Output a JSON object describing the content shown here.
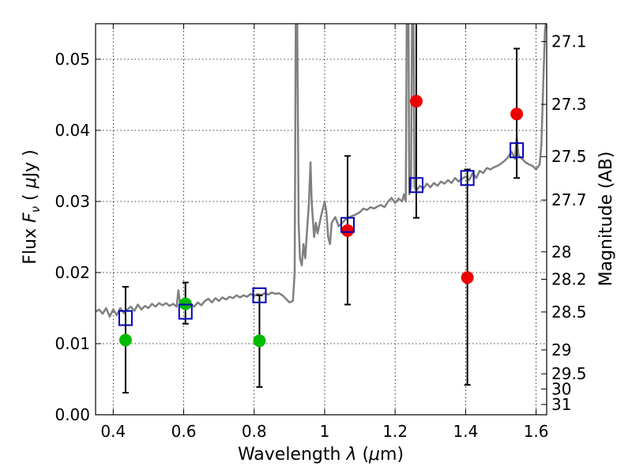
{
  "chart_data": {
    "type": "scatter",
    "title": "",
    "xlabel": {
      "prefix": "Wavelength  ",
      "symbol": "λ",
      "unit_open": " (",
      "unit_mu": "μ",
      "unit_rest": "m)"
    },
    "ylabel": {
      "prefix": "Flux  ",
      "symbol": "F",
      "subscript": "ν",
      "unit_open": "  ( ",
      "unit_mu": "μ",
      "unit_rest": "Jy )"
    },
    "y2label": "Magnitude (AB)",
    "xlim": [
      0.35,
      1.63
    ],
    "ylim": [
      0.0,
      0.055
    ],
    "grid": true,
    "grid_style": "dotted",
    "xticks": [
      {
        "value": 0.4,
        "label": "0.4"
      },
      {
        "value": 0.6,
        "label": "0.6"
      },
      {
        "value": 0.8,
        "label": "0.8"
      },
      {
        "value": 1.0,
        "label": "1"
      },
      {
        "value": 1.2,
        "label": "1.2"
      },
      {
        "value": 1.4,
        "label": "1.4"
      },
      {
        "value": 1.6,
        "label": "1.6"
      }
    ],
    "yticks": [
      {
        "value": 0.0,
        "label": "0.00"
      },
      {
        "value": 0.01,
        "label": "0.01"
      },
      {
        "value": 0.02,
        "label": "0.02"
      },
      {
        "value": 0.03,
        "label": "0.03"
      },
      {
        "value": 0.04,
        "label": "0.04"
      },
      {
        "value": 0.05,
        "label": "0.05"
      }
    ],
    "y2ticks": [
      {
        "value": 27.1,
        "label": "27.1"
      },
      {
        "value": 27.3,
        "label": "27.3"
      },
      {
        "value": 27.5,
        "label": "27.5"
      },
      {
        "value": 27.7,
        "label": "27.7"
      },
      {
        "value": 28.0,
        "label": "28"
      },
      {
        "value": 28.2,
        "label": "28.2"
      },
      {
        "value": 28.5,
        "label": "28.5"
      },
      {
        "value": 29.0,
        "label": "29"
      },
      {
        "value": 29.5,
        "label": "29.5"
      },
      {
        "value": 30.0,
        "label": "30"
      },
      {
        "value": 31.0,
        "label": "31"
      }
    ],
    "colors": {
      "spectrum": "#808080",
      "green": "#00bb00",
      "red": "#ee0000",
      "model": "#0000bb",
      "errorbar": "#000000"
    },
    "series": [
      {
        "kind": "line",
        "color": "#808080",
        "points": [
          [
            0.35,
            0.0145
          ],
          [
            0.36,
            0.0148
          ],
          [
            0.37,
            0.0142
          ],
          [
            0.38,
            0.015
          ],
          [
            0.39,
            0.0138
          ],
          [
            0.4,
            0.0148
          ],
          [
            0.41,
            0.014
          ],
          [
            0.42,
            0.015
          ],
          [
            0.43,
            0.0143
          ],
          [
            0.44,
            0.0148
          ],
          [
            0.45,
            0.0152
          ],
          [
            0.46,
            0.0146
          ],
          [
            0.47,
            0.0155
          ],
          [
            0.48,
            0.0148
          ],
          [
            0.49,
            0.0153
          ],
          [
            0.5,
            0.015
          ],
          [
            0.51,
            0.0156
          ],
          [
            0.52,
            0.0152
          ],
          [
            0.53,
            0.0157
          ],
          [
            0.54,
            0.0154
          ],
          [
            0.55,
            0.0157
          ],
          [
            0.56,
            0.0153
          ],
          [
            0.57,
            0.0156
          ],
          [
            0.58,
            0.0152
          ],
          [
            0.585,
            0.0175
          ],
          [
            0.59,
            0.0155
          ],
          [
            0.6,
            0.0154
          ],
          [
            0.61,
            0.0152
          ],
          [
            0.62,
            0.0156
          ],
          [
            0.63,
            0.0152
          ],
          [
            0.64,
            0.0158
          ],
          [
            0.65,
            0.0154
          ],
          [
            0.66,
            0.016
          ],
          [
            0.67,
            0.0163
          ],
          [
            0.68,
            0.0158
          ],
          [
            0.69,
            0.0164
          ],
          [
            0.7,
            0.016
          ],
          [
            0.71,
            0.0165
          ],
          [
            0.72,
            0.0162
          ],
          [
            0.73,
            0.0166
          ],
          [
            0.74,
            0.0164
          ],
          [
            0.75,
            0.0168
          ],
          [
            0.76,
            0.0165
          ],
          [
            0.77,
            0.0168
          ],
          [
            0.78,
            0.0166
          ],
          [
            0.79,
            0.017
          ],
          [
            0.8,
            0.0167
          ],
          [
            0.81,
            0.017
          ],
          [
            0.82,
            0.0168
          ],
          [
            0.83,
            0.0171
          ],
          [
            0.84,
            0.0169
          ],
          [
            0.85,
            0.0172
          ],
          [
            0.86,
            0.017
          ],
          [
            0.87,
            0.0171
          ],
          [
            0.88,
            0.0168
          ],
          [
            0.89,
            0.0163
          ],
          [
            0.9,
            0.0158
          ],
          [
            0.91,
            0.016
          ],
          [
            0.915,
            0.02
          ],
          [
            0.918,
            0.056
          ],
          [
            0.922,
            0.056
          ],
          [
            0.926,
            0.027
          ],
          [
            0.93,
            0.022
          ],
          [
            0.935,
            0.021
          ],
          [
            0.94,
            0.024
          ],
          [
            0.945,
            0.022
          ],
          [
            0.95,
            0.026
          ],
          [
            0.955,
            0.0295
          ],
          [
            0.96,
            0.0355
          ],
          [
            0.963,
            0.03
          ],
          [
            0.97,
            0.025
          ],
          [
            0.975,
            0.027
          ],
          [
            0.98,
            0.0255
          ],
          [
            0.99,
            0.028
          ],
          [
            1.0,
            0.03
          ],
          [
            1.005,
            0.0285
          ],
          [
            1.01,
            0.025
          ],
          [
            1.015,
            0.024
          ],
          [
            1.02,
            0.027
          ],
          [
            1.03,
            0.0278
          ],
          [
            1.04,
            0.0265
          ],
          [
            1.05,
            0.027
          ],
          [
            1.06,
            0.0275
          ],
          [
            1.07,
            0.0278
          ],
          [
            1.08,
            0.028
          ],
          [
            1.09,
            0.0282
          ],
          [
            1.1,
            0.0285
          ],
          [
            1.11,
            0.029
          ],
          [
            1.12,
            0.0288
          ],
          [
            1.13,
            0.0292
          ],
          [
            1.14,
            0.029
          ],
          [
            1.15,
            0.0293
          ],
          [
            1.16,
            0.0295
          ],
          [
            1.17,
            0.0292
          ],
          [
            1.18,
            0.03
          ],
          [
            1.19,
            0.0305
          ],
          [
            1.2,
            0.0298
          ],
          [
            1.21,
            0.0304
          ],
          [
            1.22,
            0.03
          ],
          [
            1.225,
            0.031
          ],
          [
            1.23,
            0.03
          ],
          [
            1.233,
            0.056
          ],
          [
            1.238,
            0.056
          ],
          [
            1.24,
            0.031
          ],
          [
            1.245,
            0.032
          ],
          [
            1.248,
            0.056
          ],
          [
            1.252,
            0.056
          ],
          [
            1.255,
            0.032
          ],
          [
            1.26,
            0.0315
          ],
          [
            1.27,
            0.0322
          ],
          [
            1.28,
            0.0318
          ],
          [
            1.29,
            0.0325
          ],
          [
            1.3,
            0.032
          ],
          [
            1.31,
            0.0326
          ],
          [
            1.32,
            0.0322
          ],
          [
            1.33,
            0.0328
          ],
          [
            1.34,
            0.0325
          ],
          [
            1.35,
            0.033
          ],
          [
            1.36,
            0.0326
          ],
          [
            1.37,
            0.0333
          ],
          [
            1.38,
            0.0328
          ],
          [
            1.39,
            0.0332
          ],
          [
            1.4,
            0.0335
          ],
          [
            1.41,
            0.033
          ],
          [
            1.42,
            0.034
          ],
          [
            1.43,
            0.0333
          ],
          [
            1.44,
            0.0343
          ],
          [
            1.45,
            0.034
          ],
          [
            1.46,
            0.0347
          ],
          [
            1.47,
            0.0345
          ],
          [
            1.48,
            0.0348
          ],
          [
            1.49,
            0.035
          ],
          [
            1.5,
            0.0353
          ],
          [
            1.51,
            0.0357
          ],
          [
            1.52,
            0.0362
          ],
          [
            1.53,
            0.037
          ],
          [
            1.54,
            0.036
          ],
          [
            1.545,
            0.039
          ],
          [
            1.55,
            0.0365
          ],
          [
            1.56,
            0.036
          ],
          [
            1.57,
            0.0355
          ],
          [
            1.58,
            0.0352
          ],
          [
            1.59,
            0.035
          ],
          [
            1.6,
            0.0345
          ],
          [
            1.61,
            0.0352
          ],
          [
            1.615,
            0.038
          ],
          [
            1.62,
            0.046
          ],
          [
            1.625,
            0.054
          ],
          [
            1.63,
            0.056
          ]
        ]
      },
      {
        "kind": "points",
        "marker": "circle",
        "color": "#00bb00",
        "points": [
          {
            "x": 0.435,
            "y": 0.0105,
            "err_low": 0.0031,
            "err_high": 0.018
          },
          {
            "x": 0.605,
            "y": 0.0156,
            "err_low": 0.0128,
            "err_high": 0.0186
          },
          {
            "x": 0.815,
            "y": 0.0104,
            "err_low": 0.0039,
            "err_high": 0.0168
          }
        ]
      },
      {
        "kind": "points",
        "marker": "circle",
        "color": "#ee0000",
        "points": [
          {
            "x": 1.065,
            "y": 0.0259,
            "err_low": 0.0155,
            "err_high": 0.0364
          },
          {
            "x": 1.26,
            "y": 0.0441,
            "err_low": 0.0277,
            "err_high": 0.056
          },
          {
            "x": 1.405,
            "y": 0.0193,
            "err_low": 0.0042,
            "err_high": 0.0345
          },
          {
            "x": 1.545,
            "y": 0.0423,
            "err_low": 0.0333,
            "err_high": 0.0515
          }
        ]
      },
      {
        "kind": "points",
        "marker": "square",
        "color": "#0000bb",
        "points": [
          {
            "x": 0.435,
            "y": 0.0136
          },
          {
            "x": 0.605,
            "y": 0.0145
          },
          {
            "x": 0.815,
            "y": 0.0168
          },
          {
            "x": 1.065,
            "y": 0.0267
          },
          {
            "x": 1.26,
            "y": 0.0323
          },
          {
            "x": 1.405,
            "y": 0.0333
          },
          {
            "x": 1.545,
            "y": 0.0372
          }
        ]
      }
    ]
  }
}
